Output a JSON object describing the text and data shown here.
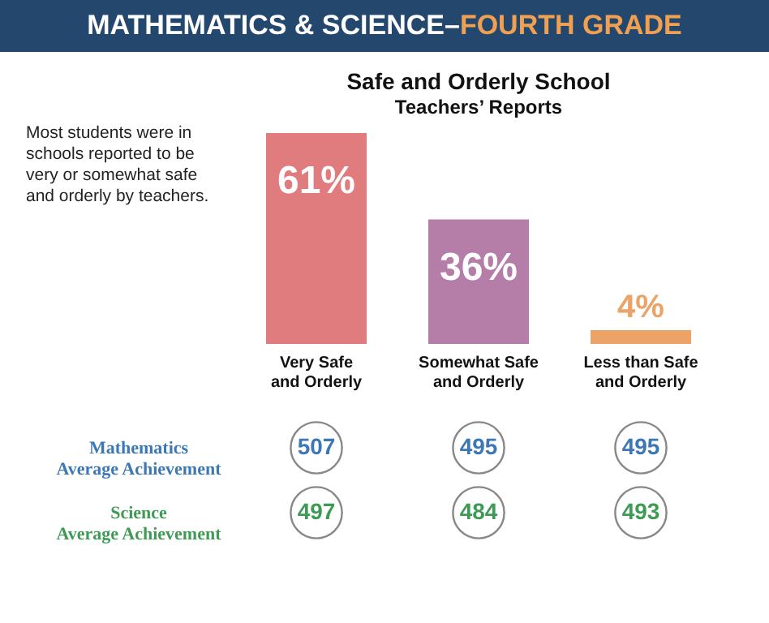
{
  "chart_data": [
    {
      "type": "bar",
      "title": "Safe and Orderly School",
      "subtitle": "Teachers’ Reports",
      "annotations": [
        "MATHEMATICS & SCIENCE–FOURTH GRADE",
        "Most students were in schools reported to be very or somewhat safe and orderly by teachers."
      ],
      "categories": [
        "Very Safe and Orderly",
        "Somewhat Safe and Orderly",
        "Less than Safe and Orderly"
      ],
      "values": [
        61,
        36,
        4
      ],
      "colors": [
        "#e07b7e",
        "#b57ea9",
        "#eba367"
      ],
      "value_labels": [
        "61%",
        "36%",
        "4%"
      ]
    },
    {
      "type": "heatmap",
      "categories": [
        null,
        null,
        null
      ],
      "data_labels": true,
      "y_categories": [
        "Mathematics Average Achievement",
        "Science Average Achievement"
      ],
      "cells": [
        [
          507,
          495,
          495
        ],
        [
          497,
          484,
          493
        ]
      ]
    }
  ]
}
